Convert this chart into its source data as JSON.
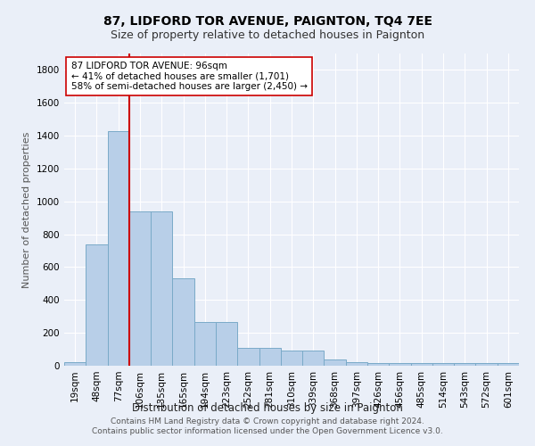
{
  "title": "87, LIDFORD TOR AVENUE, PAIGNTON, TQ4 7EE",
  "subtitle": "Size of property relative to detached houses in Paignton",
  "xlabel": "Distribution of detached houses by size in Paignton",
  "ylabel": "Number of detached properties",
  "categories": [
    "19sqm",
    "48sqm",
    "77sqm",
    "106sqm",
    "135sqm",
    "165sqm",
    "194sqm",
    "223sqm",
    "252sqm",
    "281sqm",
    "310sqm",
    "339sqm",
    "368sqm",
    "397sqm",
    "426sqm",
    "456sqm",
    "485sqm",
    "514sqm",
    "543sqm",
    "572sqm",
    "601sqm"
  ],
  "values": [
    20,
    740,
    1430,
    940,
    940,
    530,
    265,
    265,
    110,
    110,
    95,
    95,
    40,
    20,
    15,
    15,
    15,
    15,
    15,
    15,
    15
  ],
  "bar_color": "#b8cfe8",
  "bar_edge_color": "#7aaac8",
  "bar_edge_width": 0.7,
  "bg_color": "#eaeff8",
  "grid_color": "#ffffff",
  "annotation_line_idx": 3,
  "annotation_line_color": "#cc0000",
  "annotation_box_text": "87 LIDFORD TOR AVENUE: 96sqm\n← 41% of detached houses are smaller (1,701)\n58% of semi-detached houses are larger (2,450) →",
  "annotation_box_color": "#ffffff",
  "annotation_box_edge_color": "#cc0000",
  "ylim": [
    0,
    1900
  ],
  "yticks": [
    0,
    200,
    400,
    600,
    800,
    1000,
    1200,
    1400,
    1600,
    1800
  ],
  "footer": "Contains HM Land Registry data © Crown copyright and database right 2024.\nContains public sector information licensed under the Open Government Licence v3.0.",
  "title_fontsize": 10,
  "subtitle_fontsize": 9,
  "ylabel_fontsize": 8,
  "xlabel_fontsize": 8.5,
  "tick_fontsize": 7.5,
  "footer_fontsize": 6.5
}
